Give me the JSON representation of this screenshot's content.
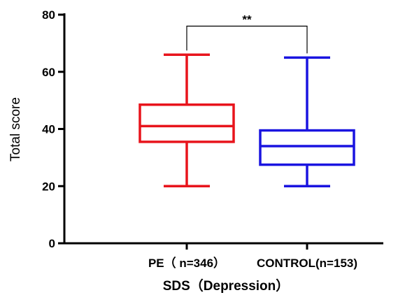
{
  "chart_data": {
    "type": "box",
    "title": "",
    "xlabel": "SDS（Depression）",
    "ylabel": "Total score",
    "ylim": [
      0,
      80
    ],
    "yticks": [
      0,
      20,
      40,
      60,
      80
    ],
    "grid": false,
    "categories": [
      "PE（ n=346）",
      "CONTROL(n=153)"
    ],
    "boxes": [
      {
        "category": "PE（ n=346）",
        "min": 20,
        "q1": 35.5,
        "median": 41,
        "q3": 48.5,
        "max": 66,
        "color": "#e8141c"
      },
      {
        "category": "CONTROL(n=153)",
        "min": 20,
        "q1": 27.5,
        "median": 34,
        "q3": 39.5,
        "max": 65,
        "color": "#1a14e0"
      }
    ],
    "significance": {
      "between": [
        0,
        1
      ],
      "label": "**",
      "y": 76
    }
  }
}
